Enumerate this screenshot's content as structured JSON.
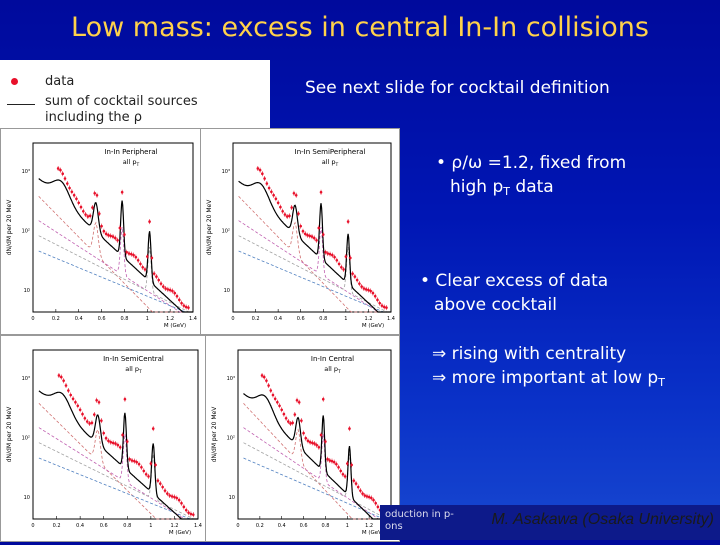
{
  "title": "Low mass: excess in central In-In collisions",
  "legend": {
    "data_label": "data",
    "cocktail_label_line1": "sum of cocktail sources",
    "cocktail_label_line2": "including the ρ"
  },
  "note": "See next slide for cocktail definition",
  "bullets": {
    "b1_line1": "• ρ/ω =1.2, fixed from",
    "b1_line2_pre": "high p",
    "b1_line2_sub": "T",
    "b1_line2_post": " data",
    "b2_line1": "• Clear excess of data",
    "b2_line2": "above cocktail",
    "b3_line1": "⇒ rising with centrality",
    "b3_line2_pre": "⇒ more important at low p",
    "b3_line2_sub": "T"
  },
  "footer": {
    "left_line1": "oduction in p-",
    "left_line2": "ons",
    "author": "M. Asakawa (Osaka University)"
  },
  "panels": [
    {
      "name": "peripheral",
      "label": "In-In Peripheral",
      "sub": "all p",
      "sub_sub": "T"
    },
    {
      "name": "semiperipheral",
      "label": "In-In SemiPeripheral",
      "sub": "all p",
      "sub_sub": "T"
    },
    {
      "name": "semicentral",
      "label": "In-In SemiCentral",
      "sub": "all p",
      "sub_sub": "T"
    },
    {
      "name": "central",
      "label": "In-In Central",
      "sub": "all p",
      "sub_sub": "T"
    }
  ],
  "axis": {
    "ylabel": "dN/dM per 20 MeV",
    "xlabel": "M (GeV)",
    "xticks": [
      "0",
      "0.2",
      "0.4",
      "0.6",
      "0.8",
      "1",
      "1.2",
      "1.4"
    ],
    "yticks": [
      "10³",
      "10²",
      "10"
    ]
  },
  "colors": {
    "title": "#ffd24a",
    "data_points": "#e8102a",
    "bg_top": "#000a9c"
  }
}
